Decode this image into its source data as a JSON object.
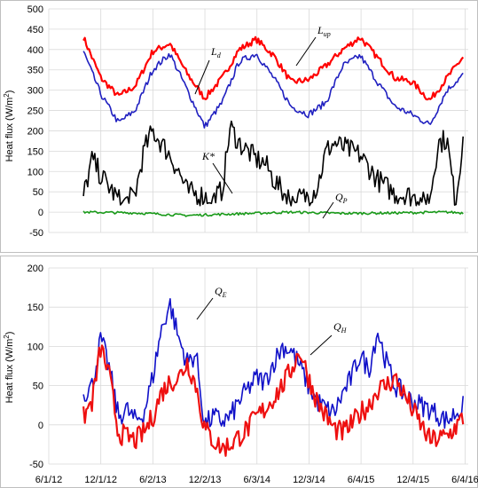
{
  "chart_data": [
    {
      "type": "line",
      "ylabel": "Heat flux (W/m²)",
      "ylabel_main": "Heat flux (W/m",
      "ylabel_sup": "2",
      "ylabel_end": ")",
      "ylim": [
        -50,
        500
      ],
      "yticks": [
        -50,
        0,
        50,
        100,
        150,
        200,
        250,
        300,
        350,
        400,
        450,
        500
      ],
      "grid": true,
      "series": [
        {
          "name": "L_up",
          "label_main": "L",
          "label_sub": "up",
          "color": "#ff0000",
          "x": [
            "2012-10-01",
            "2012-12-01",
            "2013-02-01",
            "2013-04-01",
            "2013-06-01",
            "2013-08-01",
            "2013-10-01",
            "2013-12-01",
            "2014-02-01",
            "2014-04-01",
            "2014-06-01",
            "2014-08-01",
            "2014-10-01",
            "2014-12-01",
            "2015-02-01",
            "2015-04-01",
            "2015-06-01",
            "2015-08-01",
            "2015-10-01",
            "2015-12-01",
            "2016-02-01",
            "2016-04-01",
            "2016-06-01"
          ],
          "values": [
            430,
            330,
            285,
            310,
            395,
            415,
            340,
            280,
            330,
            400,
            425,
            385,
            320,
            325,
            360,
            400,
            430,
            380,
            330,
            320,
            275,
            330,
            385
          ]
        },
        {
          "name": "L_d",
          "label_main": "L",
          "label_sub": "d",
          "color": "#2020c0",
          "x": [
            "2012-10-01",
            "2012-12-01",
            "2013-02-01",
            "2013-04-01",
            "2013-06-01",
            "2013-08-01",
            "2013-10-01",
            "2013-12-01",
            "2014-02-01",
            "2014-04-01",
            "2014-06-01",
            "2014-08-01",
            "2014-10-01",
            "2014-12-01",
            "2015-02-01",
            "2015-04-01",
            "2015-06-01",
            "2015-08-01",
            "2015-10-01",
            "2015-12-01",
            "2016-02-01",
            "2016-04-01",
            "2016-06-01"
          ],
          "values": [
            395,
            290,
            220,
            250,
            350,
            390,
            300,
            210,
            270,
            370,
            390,
            330,
            260,
            240,
            270,
            360,
            385,
            320,
            260,
            240,
            215,
            300,
            340
          ]
        },
        {
          "name": "K*",
          "label_main": "K*",
          "label_sub": "",
          "color": "#000000",
          "x": [
            "2012-10-01",
            "2012-11-01",
            "2012-12-01",
            "2013-02-01",
            "2013-03-01",
            "2013-04-01",
            "2013-05-01",
            "2013-06-01",
            "2013-08-01",
            "2013-09-01",
            "2013-10-01",
            "2013-12-01",
            "2014-01-01",
            "2014-02-01",
            "2014-03-01",
            "2014-04-01",
            "2014-05-01",
            "2014-06-01",
            "2014-07-01",
            "2014-08-01",
            "2014-09-01",
            "2014-10-01",
            "2014-12-01",
            "2015-01-01",
            "2015-02-01",
            "2015-03-01",
            "2015-04-01",
            "2015-06-01",
            "2015-07-01",
            "2015-08-01",
            "2015-10-01",
            "2015-12-01",
            "2016-01-01",
            "2016-02-01",
            "2016-03-01",
            "2016-04-01",
            "2016-05-01",
            "2016-06-01"
          ],
          "values": [
            40,
            130,
            90,
            30,
            25,
            45,
            150,
            200,
            140,
            100,
            50,
            40,
            30,
            55,
            210,
            170,
            150,
            130,
            120,
            80,
            50,
            30,
            40,
            60,
            150,
            170,
            160,
            140,
            110,
            80,
            45,
            40,
            25,
            35,
            170,
            180,
            20,
            210
          ]
        },
        {
          "name": "Q_P",
          "label_main": "Q",
          "label_sub": "P",
          "color": "#1a9a1a",
          "x": [
            "2012-10-01",
            "2013-04-01",
            "2013-10-01",
            "2014-04-01",
            "2014-10-01",
            "2015-04-01",
            "2015-10-01",
            "2016-04-01",
            "2016-06-01"
          ],
          "values": [
            0,
            -2,
            -8,
            -4,
            0,
            -3,
            -2,
            0,
            -2
          ]
        }
      ],
      "x_range": [
        "2012-06-01",
        "2016-06-15"
      ]
    },
    {
      "type": "line",
      "ylabel": "Heat flux (W/m²)",
      "ylabel_main": "Heat flux (W/m",
      "ylabel_sup": "2",
      "ylabel_end": ")",
      "ylim": [
        -50,
        200
      ],
      "yticks": [
        -50,
        0,
        50,
        100,
        150,
        200
      ],
      "grid": true,
      "xticks": [
        "6/1/12",
        "12/1/12",
        "6/2/13",
        "12/2/13",
        "6/3/14",
        "12/3/14",
        "6/4/15",
        "12/4/15",
        "6/4/16"
      ],
      "xtick_dates": [
        "2012-06-01",
        "2012-12-01",
        "2013-06-02",
        "2013-12-02",
        "2014-06-03",
        "2014-12-03",
        "2015-06-04",
        "2015-12-04",
        "2016-06-04"
      ],
      "series": [
        {
          "name": "Q_E",
          "label_main": "Q",
          "label_sub": "E",
          "color": "#1010c8",
          "x": [
            "2012-10-01",
            "2012-11-01",
            "2012-12-01",
            "2013-01-01",
            "2013-02-01",
            "2013-03-01",
            "2013-04-01",
            "2013-05-01",
            "2013-06-01",
            "2013-07-01",
            "2013-08-01",
            "2013-09-01",
            "2013-10-01",
            "2013-11-01",
            "2013-12-01",
            "2014-01-01",
            "2014-02-01",
            "2014-03-01",
            "2014-04-01",
            "2014-05-01",
            "2014-06-01",
            "2014-07-01",
            "2014-08-01",
            "2014-09-01",
            "2014-10-01",
            "2014-11-01",
            "2014-12-01",
            "2015-01-01",
            "2015-02-01",
            "2015-03-01",
            "2015-04-01",
            "2015-05-01",
            "2015-06-01",
            "2015-07-01",
            "2015-08-01",
            "2015-09-01",
            "2015-10-01",
            "2015-12-01",
            "2016-02-01",
            "2016-04-01",
            "2016-06-01"
          ],
          "values": [
            40,
            50,
            110,
            70,
            10,
            20,
            5,
            15,
            60,
            120,
            155,
            110,
            80,
            90,
            0,
            10,
            5,
            10,
            30,
            45,
            60,
            55,
            80,
            100,
            95,
            75,
            50,
            30,
            20,
            15,
            40,
            60,
            90,
            70,
            120,
            80,
            50,
            30,
            20,
            5,
            25
          ]
        },
        {
          "name": "Q_H",
          "label_main": "Q",
          "label_sub": "H",
          "color": "#ee1010",
          "x": [
            "2012-10-01",
            "2012-11-01",
            "2012-12-01",
            "2013-01-01",
            "2013-02-01",
            "2013-03-01",
            "2013-04-01",
            "2013-05-01",
            "2013-06-01",
            "2013-07-01",
            "2013-08-01",
            "2013-09-01",
            "2013-10-01",
            "2013-11-01",
            "2013-12-01",
            "2014-01-01",
            "2014-02-01",
            "2014-03-01",
            "2014-04-01",
            "2014-05-01",
            "2014-06-01",
            "2014-07-01",
            "2014-08-01",
            "2014-09-01",
            "2014-10-01",
            "2014-11-01",
            "2014-12-01",
            "2015-01-01",
            "2015-02-01",
            "2015-03-01",
            "2015-04-01",
            "2015-05-01",
            "2015-06-01",
            "2015-07-01",
            "2015-08-01",
            "2015-09-01",
            "2015-10-01",
            "2015-12-01",
            "2016-02-01",
            "2016-04-01",
            "2016-06-01"
          ],
          "values": [
            10,
            30,
            100,
            60,
            -10,
            -15,
            -20,
            -10,
            10,
            40,
            55,
            60,
            80,
            50,
            -5,
            -20,
            -30,
            -25,
            -15,
            -5,
            10,
            20,
            35,
            50,
            70,
            95,
            60,
            30,
            10,
            -5,
            -10,
            0,
            15,
            25,
            45,
            50,
            60,
            20,
            -20,
            -15,
            10
          ]
        }
      ],
      "x_range": [
        "2012-06-01",
        "2016-06-15"
      ]
    }
  ],
  "annotations": [
    {
      "target": "L_up",
      "main": "L",
      "sub": "up"
    },
    {
      "target": "L_d",
      "main": "L",
      "sub": "d"
    },
    {
      "target": "K*",
      "main": "K*",
      "sub": ""
    },
    {
      "target": "Q_P",
      "main": "Q",
      "sub": "P"
    },
    {
      "target": "Q_E",
      "main": "Q",
      "sub": "E"
    },
    {
      "target": "Q_H",
      "main": "Q",
      "sub": "H"
    }
  ]
}
